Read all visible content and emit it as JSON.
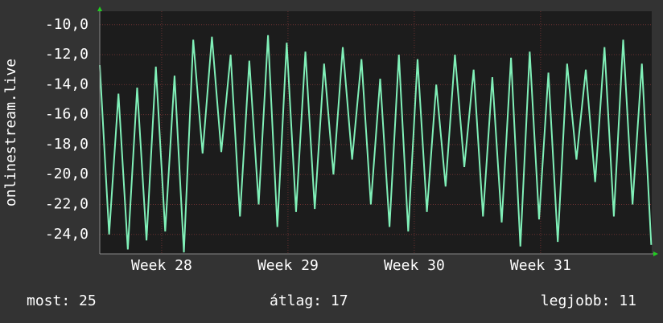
{
  "chart_data": {
    "type": "line",
    "y_label": "onlinestream.live",
    "x": [
      27.51,
      27.584,
      27.658,
      27.732,
      27.806,
      27.88,
      27.954,
      28.028,
      28.102,
      28.176,
      28.25,
      28.324,
      28.398,
      28.472,
      28.546,
      28.62,
      28.694,
      28.768,
      28.842,
      28.916,
      28.99,
      29.064,
      29.138,
      29.212,
      29.286,
      29.36,
      29.434,
      29.508,
      29.582,
      29.656,
      29.73,
      29.804,
      29.878,
      29.952,
      30.026,
      30.1,
      30.174,
      30.248,
      30.322,
      30.396,
      30.47,
      30.544,
      30.618,
      30.692,
      30.766,
      30.84,
      30.914,
      30.988,
      31.062,
      31.136,
      31.21,
      31.284,
      31.358,
      31.432,
      31.506,
      31.58,
      31.654,
      31.728,
      31.802,
      31.876
    ],
    "series": [
      {
        "color": "#80f0b8",
        "values": [
          -12.7,
          -24.0,
          -14.6,
          -25.0,
          -14.2,
          -24.4,
          -12.8,
          -23.8,
          -13.4,
          -25.2,
          -11.0,
          -18.6,
          -10.8,
          -18.5,
          -12.0,
          -22.8,
          -12.4,
          -22.0,
          -10.7,
          -23.5,
          -11.2,
          -22.5,
          -11.8,
          -22.3,
          -12.6,
          -20.0,
          -11.5,
          -19.0,
          -12.3,
          -22.0,
          -13.6,
          -23.5,
          -12.0,
          -23.8,
          -12.3,
          -22.5,
          -14.0,
          -20.8,
          -12.0,
          -19.5,
          -13.0,
          -22.8,
          -13.5,
          -23.2,
          -12.2,
          -24.8,
          -11.8,
          -23.0,
          -13.2,
          -24.5,
          -12.6,
          -19.0,
          -13.0,
          -20.5,
          -11.5,
          -22.8,
          -11.0,
          -22.0,
          -12.6,
          -24.7
        ]
      }
    ],
    "xlim": [
      27.51,
      31.88
    ],
    "xticks": [
      {
        "value": 28,
        "label": "Week 28"
      },
      {
        "value": 29,
        "label": "Week 29"
      },
      {
        "value": 30,
        "label": "Week 30"
      },
      {
        "value": 31,
        "label": "Week 31"
      }
    ],
    "ylim": [
      -25.3,
      -9.1
    ],
    "yticks": [
      {
        "value": -10,
        "label": "-10,0"
      },
      {
        "value": -12,
        "label": "-12,0"
      },
      {
        "value": -14,
        "label": "-14,0"
      },
      {
        "value": -16,
        "label": "-16,0"
      },
      {
        "value": -18,
        "label": "-18,0"
      },
      {
        "value": -20,
        "label": "-20,0"
      },
      {
        "value": -22,
        "label": "-22,0"
      },
      {
        "value": -24,
        "label": "-24,0"
      }
    ],
    "grid": true,
    "footer": [
      "most: 25",
      "átlag: 17",
      "legjobb: 11"
    ]
  }
}
